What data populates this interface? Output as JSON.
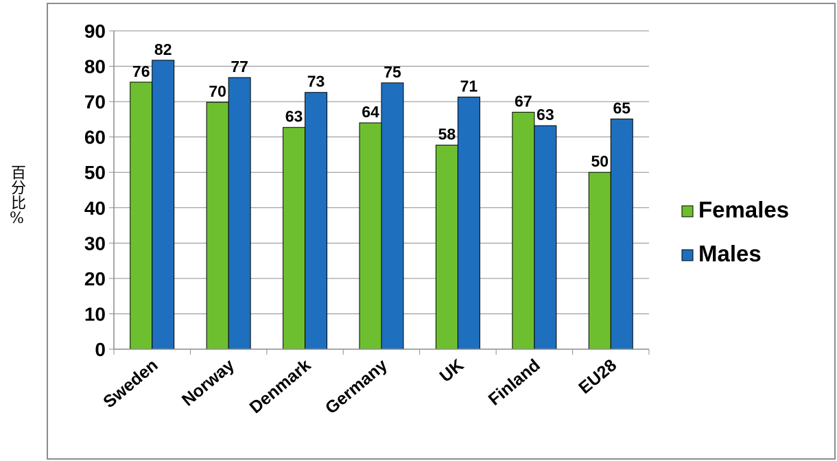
{
  "chart_data": {
    "type": "bar",
    "title": "",
    "xlabel": "",
    "ylabel": "百分比%",
    "ylim": [
      0,
      90
    ],
    "yticks": [
      0,
      10,
      20,
      30,
      40,
      50,
      60,
      70,
      80,
      90
    ],
    "grid": true,
    "legend_position": "right",
    "categories": [
      "Sweden",
      "Norway",
      "Denmark",
      "Germany",
      "UK",
      "Finland",
      "EU28"
    ],
    "series": [
      {
        "name": "Females",
        "color": "#6ebf2f",
        "values": [
          75.5,
          69.8,
          62.7,
          64,
          57.7,
          67,
          50
        ],
        "labels": [
          "76",
          "70",
          "63",
          "64",
          "58",
          "67",
          "50"
        ]
      },
      {
        "name": "Males",
        "color": "#1f6fbf",
        "values": [
          81.7,
          76.8,
          72.6,
          75.3,
          71.3,
          63.2,
          65.1
        ],
        "labels": [
          "82",
          "77",
          "73",
          "75",
          "71",
          "63",
          "65"
        ]
      }
    ]
  }
}
